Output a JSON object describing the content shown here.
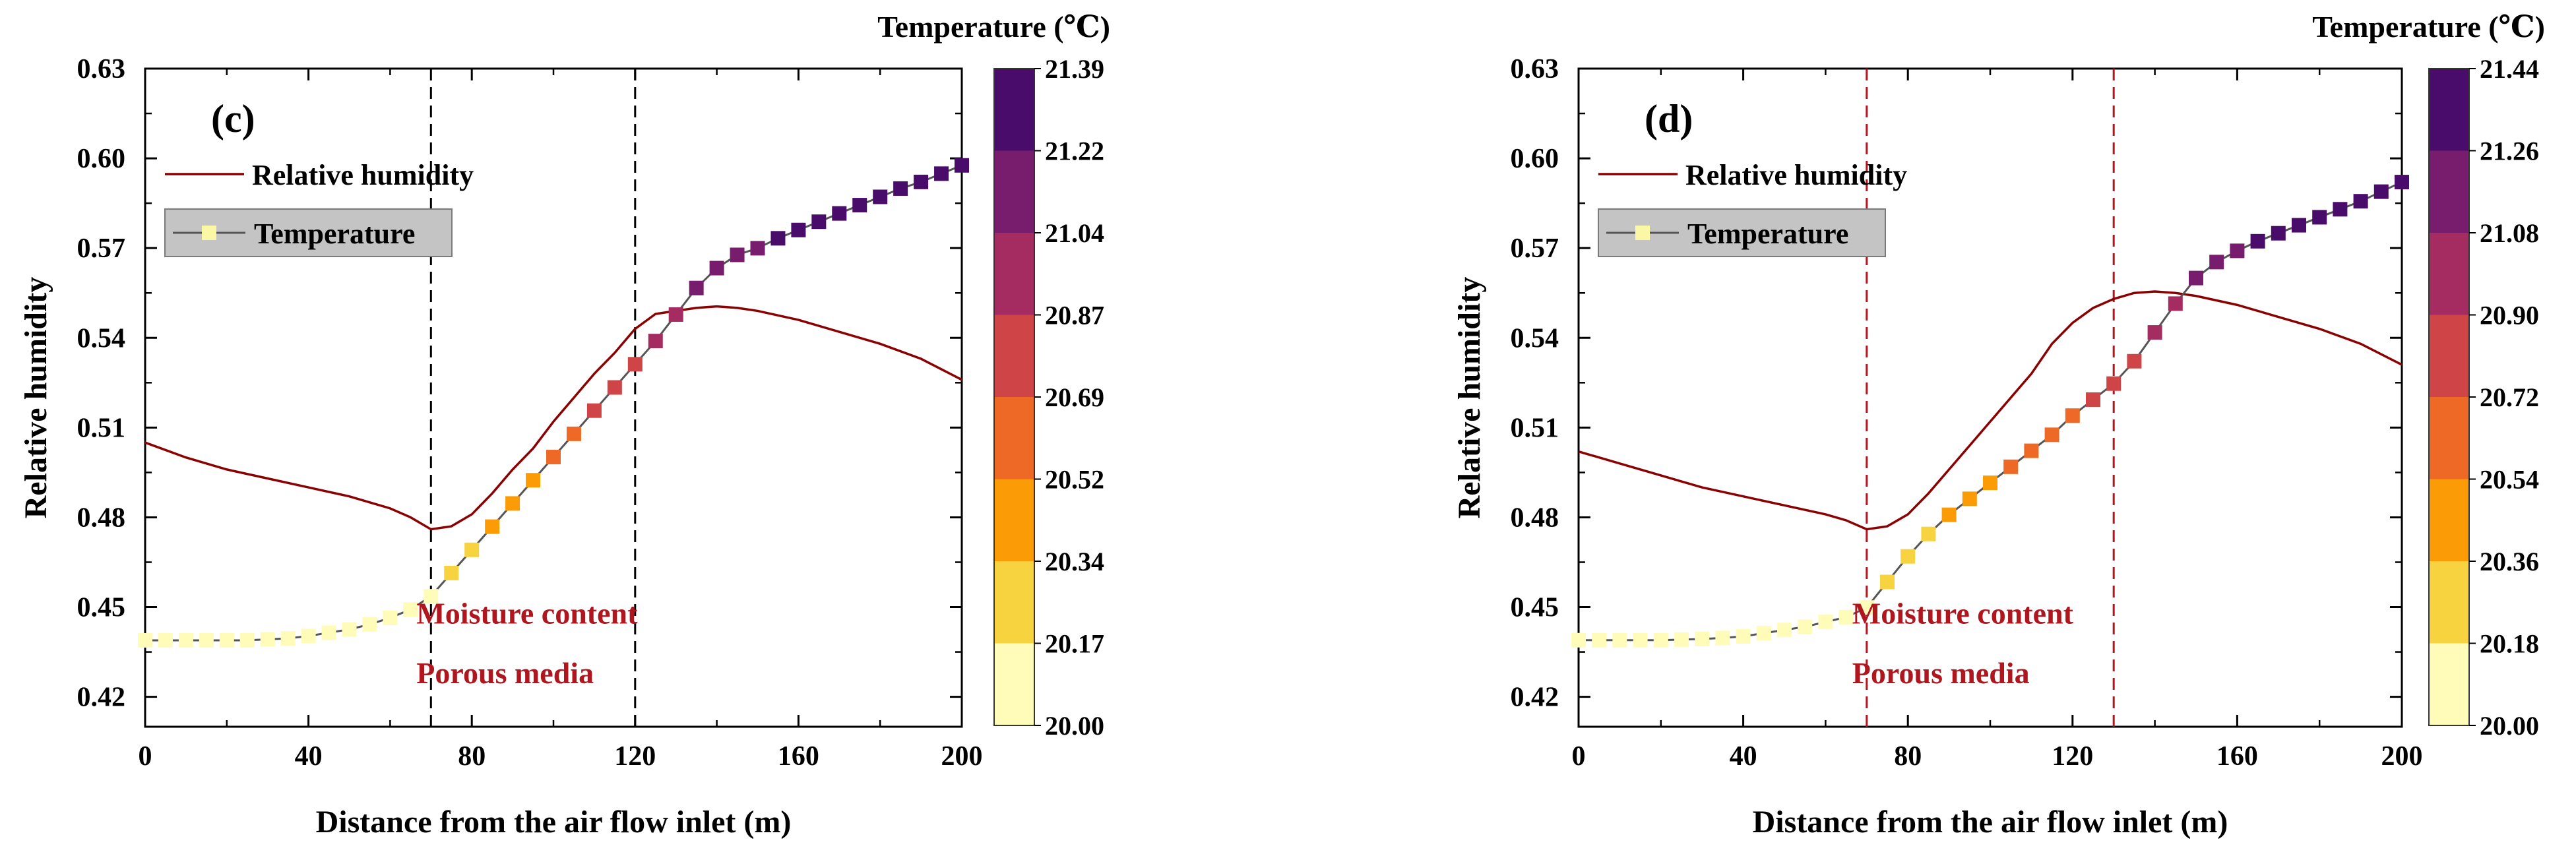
{
  "chart_data": [
    {
      "type": "line",
      "panel_label": "(c)",
      "xlabel": "Distance from the air flow inlet (m)",
      "ylabel": "Relative humidity",
      "xlim": [
        0,
        200
      ],
      "ylim": [
        0.41,
        0.63
      ],
      "x_ticks": [
        0,
        40,
        80,
        120,
        160,
        200
      ],
      "y_ticks": [
        0.42,
        0.45,
        0.48,
        0.51,
        0.54,
        0.57,
        0.6,
        0.63
      ],
      "y_tick_labels": [
        "0.42",
        "0.45",
        "0.48",
        "0.51",
        "0.54",
        "0.57",
        "0.60",
        "0.63"
      ],
      "vlines": [
        70,
        120
      ],
      "vline_color": "#000000",
      "annotations": [
        "Moisture content",
        "Porous media"
      ],
      "annotation_color": "#b0161e",
      "legend": [
        {
          "label": "Relative humidity",
          "kind": "line",
          "color": "#8b0000"
        },
        {
          "label": "Temperature",
          "kind": "line-marker",
          "color": "#555555",
          "marker_color": "#fbf8a5"
        }
      ],
      "series": [
        {
          "name": "Relative humidity",
          "color": "#8b0000",
          "x": [
            0,
            10,
            20,
            30,
            40,
            50,
            60,
            65,
            70,
            75,
            80,
            85,
            90,
            95,
            100,
            105,
            110,
            115,
            120,
            125,
            130,
            135,
            140,
            145,
            150,
            160,
            170,
            180,
            190,
            200
          ],
          "y": [
            0.505,
            0.5,
            0.496,
            0.493,
            0.49,
            0.487,
            0.483,
            0.48,
            0.476,
            0.477,
            0.481,
            0.488,
            0.496,
            0.503,
            0.512,
            0.52,
            0.528,
            0.535,
            0.543,
            0.548,
            0.549,
            0.55,
            0.5505,
            0.55,
            0.549,
            0.546,
            0.542,
            0.538,
            0.533,
            0.526
          ]
        },
        {
          "name": "Temperature",
          "axis": "right",
          "color": "#555555",
          "x": [
            0,
            5,
            10,
            15,
            20,
            25,
            30,
            35,
            40,
            45,
            50,
            55,
            60,
            65,
            70,
            75,
            80,
            85,
            90,
            95,
            100,
            105,
            110,
            115,
            120,
            125,
            130,
            135,
            140,
            145,
            150,
            155,
            160,
            165,
            170,
            175,
            180,
            185,
            190,
            195,
            200
          ],
          "y": [
            20.017,
            20.017,
            20.017,
            20.017,
            20.017,
            20.017,
            20.02,
            20.023,
            20.03,
            20.04,
            20.05,
            20.065,
            20.085,
            20.11,
            20.15,
            20.22,
            20.29,
            20.36,
            20.43,
            20.5,
            20.57,
            20.64,
            20.71,
            20.78,
            20.85,
            20.92,
            21.0,
            21.08,
            21.14,
            21.18,
            21.2,
            21.23,
            21.255,
            21.28,
            21.305,
            21.33,
            21.355,
            21.38,
            21.4,
            21.425,
            21.45
          ]
        }
      ],
      "colorbar": {
        "title": "Temperature (℃)",
        "tick_labels": [
          "20.00",
          "20.17",
          "20.34",
          "20.52",
          "20.69",
          "20.87",
          "21.04",
          "21.22",
          "21.39"
        ],
        "min": 20.0,
        "max": 21.39,
        "colors": [
          "#fefcb8",
          "#f7d340",
          "#fb9b06",
          "#ed6925",
          "#cf4446",
          "#a52c60",
          "#781c6d",
          "#4a0c6b"
        ]
      }
    },
    {
      "type": "line",
      "panel_label": "(d)",
      "xlabel": "Distance from the air flow inlet (m)",
      "ylabel": "Relative humidity",
      "xlim": [
        0,
        200
      ],
      "ylim": [
        0.41,
        0.63
      ],
      "x_ticks": [
        0,
        40,
        80,
        120,
        160,
        200
      ],
      "y_ticks": [
        0.42,
        0.45,
        0.48,
        0.51,
        0.54,
        0.57,
        0.6,
        0.63
      ],
      "y_tick_labels": [
        "0.42",
        "0.45",
        "0.48",
        "0.51",
        "0.54",
        "0.57",
        "0.60",
        "0.63"
      ],
      "vlines": [
        70,
        130
      ],
      "vline_color": "#b0161e",
      "annotations": [
        "Moisture content",
        "Porous media"
      ],
      "annotation_color": "#b0161e",
      "legend": [
        {
          "label": "Relative humidity",
          "kind": "line",
          "color": "#8b0000"
        },
        {
          "label": "Temperature",
          "kind": "line-marker",
          "color": "#555555",
          "marker_color": "#fbf8a5"
        }
      ],
      "series": [
        {
          "name": "Relative humidity",
          "color": "#8b0000",
          "x": [
            0,
            10,
            20,
            30,
            40,
            50,
            60,
            65,
            70,
            75,
            80,
            85,
            90,
            95,
            100,
            105,
            110,
            115,
            120,
            125,
            130,
            135,
            140,
            145,
            150,
            160,
            170,
            180,
            190,
            200
          ],
          "y": [
            0.502,
            0.498,
            0.494,
            0.49,
            0.487,
            0.484,
            0.481,
            0.479,
            0.476,
            0.477,
            0.481,
            0.488,
            0.496,
            0.504,
            0.512,
            0.52,
            0.528,
            0.538,
            0.545,
            0.55,
            0.553,
            0.555,
            0.5555,
            0.555,
            0.554,
            0.551,
            0.547,
            0.543,
            0.538,
            0.531
          ]
        },
        {
          "name": "Temperature",
          "axis": "right",
          "color": "#555555",
          "x": [
            0,
            5,
            10,
            15,
            20,
            25,
            30,
            35,
            40,
            45,
            50,
            55,
            60,
            65,
            70,
            75,
            80,
            85,
            90,
            95,
            100,
            105,
            110,
            115,
            120,
            125,
            130,
            135,
            140,
            145,
            150,
            155,
            160,
            165,
            170,
            175,
            180,
            185,
            190,
            195,
            200
          ],
          "y": [
            20.018,
            20.018,
            20.018,
            20.018,
            20.018,
            20.02,
            20.022,
            20.025,
            20.03,
            20.04,
            20.05,
            20.06,
            20.075,
            20.09,
            20.12,
            20.2,
            20.28,
            20.35,
            20.41,
            20.46,
            20.51,
            20.56,
            20.61,
            20.66,
            20.72,
            20.77,
            20.82,
            20.89,
            20.98,
            21.07,
            21.15,
            21.2,
            21.235,
            21.265,
            21.29,
            21.315,
            21.34,
            21.365,
            21.39,
            21.42,
            21.45
          ]
        }
      ],
      "colorbar": {
        "title": "Temperature (℃)",
        "tick_labels": [
          "20.00",
          "20.18",
          "20.36",
          "20.54",
          "20.72",
          "20.90",
          "21.08",
          "21.26",
          "21.44"
        ],
        "min": 20.0,
        "max": 21.44,
        "colors": [
          "#fefcb8",
          "#f7d340",
          "#fb9b06",
          "#ed6925",
          "#cf4446",
          "#a52c60",
          "#781c6d",
          "#4a0c6b"
        ]
      }
    }
  ]
}
